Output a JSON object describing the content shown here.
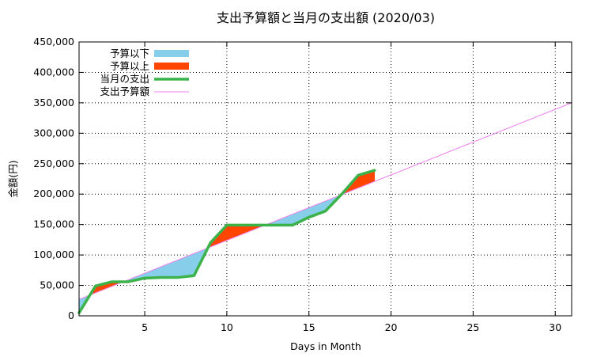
{
  "chart_data": {
    "type": "line",
    "title": "支出予算額と当月の支出額 (2020/03)",
    "xlabel": "Days in Month",
    "ylabel": "金額(円)",
    "xlim": [
      1,
      31
    ],
    "ylim": [
      0,
      450000
    ],
    "x_ticks": [
      5,
      10,
      15,
      20,
      25,
      30
    ],
    "y_ticks": [
      0,
      50000,
      100000,
      150000,
      200000,
      250000,
      300000,
      350000,
      400000,
      450000
    ],
    "y_tick_labels": [
      "0",
      "50,000",
      "100,000",
      "150,000",
      "200,000",
      "250,000",
      "300,000",
      "350,000",
      "400,000",
      "450,000"
    ],
    "x_tick_labels": [
      "5",
      "10",
      "15",
      "20",
      "25",
      "30"
    ],
    "grid": true,
    "legend_position": "top-left",
    "legend": [
      {
        "label": "予算以下",
        "style": "fill",
        "color": "#87ceeb"
      },
      {
        "label": "予算以上",
        "style": "fill",
        "color": "#ff4500"
      },
      {
        "label": "当月の支出",
        "style": "line",
        "color": "#3cb34a"
      },
      {
        "label": "支出予算額",
        "style": "thinline",
        "color": "#ee82ee"
      }
    ],
    "series": [
      {
        "name": "支出予算額",
        "color": "#ee82ee",
        "x": [
          1,
          31
        ],
        "y": [
          27000,
          350000
        ]
      },
      {
        "name": "当月の支出",
        "color": "#3cb34a",
        "x": [
          1,
          2,
          3,
          4,
          5,
          6,
          7,
          8,
          9,
          10,
          11,
          12,
          13,
          14,
          15,
          16,
          17,
          18,
          19
        ],
        "y": [
          5000,
          49000,
          56000,
          56000,
          62000,
          63000,
          63000,
          66000,
          120000,
          149000,
          149000,
          149000,
          149000,
          149000,
          162000,
          172000,
          200000,
          231000,
          239000
        ]
      }
    ]
  }
}
